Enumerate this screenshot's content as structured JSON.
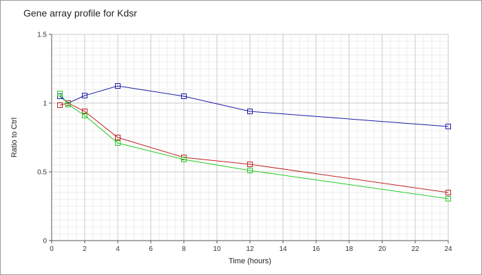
{
  "chart_data": {
    "type": "line",
    "title": "Gene array profile for Kdsr",
    "xlabel": "Time (hours)",
    "ylabel": "Ratio to Ctrl",
    "xlim": [
      0,
      24
    ],
    "ylim": [
      0,
      1.5
    ],
    "xticks": [
      "0",
      "2",
      "4",
      "6",
      "8",
      "10",
      "12",
      "14",
      "16",
      "18",
      "20",
      "22",
      "24"
    ],
    "yticks": [
      "0",
      "0.5",
      "1",
      "1.5"
    ],
    "grid": true,
    "series": [
      {
        "color": "#1a1aa8",
        "marker": "square",
        "points": [
          [
            0.5,
            1.05
          ],
          [
            1,
            1.0
          ],
          [
            2,
            1.055
          ],
          [
            4,
            1.125
          ],
          [
            8,
            1.05
          ],
          [
            12,
            0.94
          ],
          [
            24,
            0.83
          ]
        ]
      },
      {
        "color": "#c02020",
        "marker": "square",
        "points": [
          [
            0.5,
            0.985
          ],
          [
            1,
            1.0
          ],
          [
            2,
            0.94
          ],
          [
            4,
            0.75
          ],
          [
            8,
            0.605
          ],
          [
            12,
            0.555
          ],
          [
            24,
            0.35
          ]
        ]
      },
      {
        "color": "#22cc22",
        "marker": "square",
        "points": [
          [
            0.5,
            1.07
          ],
          [
            1,
            0.99
          ],
          [
            2,
            0.91
          ],
          [
            4,
            0.71
          ],
          [
            8,
            0.59
          ],
          [
            12,
            0.51
          ],
          [
            24,
            0.305
          ]
        ]
      }
    ]
  }
}
